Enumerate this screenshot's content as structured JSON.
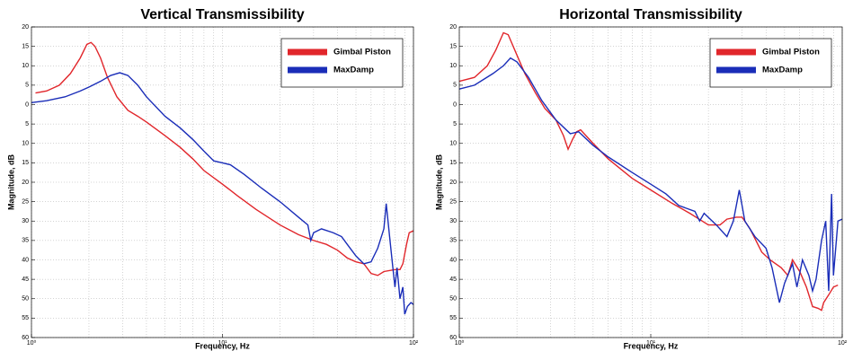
{
  "chart_data": [
    {
      "type": "line",
      "title": "Vertical Transmissibility",
      "xlabel": "Frequency, Hz",
      "ylabel": "Magnitude, dB",
      "xscale": "log",
      "grid": true,
      "legend": "upper right",
      "xlim": [
        1,
        100
      ],
      "xticks": [
        {
          "value": 1,
          "label": "10⁰"
        },
        {
          "value": 10,
          "label": "10¹"
        },
        {
          "value": 100,
          "label": "10²"
        }
      ],
      "ylim": [
        -60,
        20
      ],
      "yticks": [
        20,
        15,
        10,
        5,
        0,
        {
          "value": -5,
          "label": "5"
        },
        {
          "value": -10,
          "label": "10"
        },
        {
          "value": -15,
          "label": "15"
        },
        {
          "value": -20,
          "label": "20"
        },
        {
          "value": -25,
          "label": "25"
        },
        {
          "value": -30,
          "label": "30"
        },
        {
          "value": -35,
          "label": "35"
        },
        {
          "value": -40,
          "label": "40"
        },
        {
          "value": -45,
          "label": "45"
        },
        {
          "value": -50,
          "label": "50"
        },
        {
          "value": -55,
          "label": "55"
        },
        {
          "value": -60,
          "label": "60"
        }
      ],
      "series": [
        {
          "name": "Gimbal Piston",
          "color": "#e1262b",
          "x": [
            1.05,
            1.2,
            1.4,
            1.6,
            1.8,
            1.95,
            2.05,
            2.15,
            2.3,
            2.5,
            2.8,
            3.2,
            3.6,
            4,
            5,
            6,
            7,
            8,
            10,
            12,
            15,
            20,
            25,
            30,
            35,
            40,
            45,
            50,
            55,
            60,
            65,
            70,
            80,
            85,
            88,
            92,
            95,
            100
          ],
          "values": [
            3,
            3.5,
            5,
            8,
            12,
            15.5,
            16,
            15,
            12,
            7,
            2,
            -1.5,
            -3,
            -4.5,
            -8,
            -11,
            -14,
            -17,
            -20.5,
            -23.5,
            -27,
            -31,
            -33.5,
            -35,
            -36,
            -37.5,
            -39.5,
            -40.5,
            -41,
            -43.5,
            -44,
            -43,
            -42.5,
            -42.5,
            -41,
            -36,
            -33,
            -32.5
          ]
        },
        {
          "name": "MaxDamp",
          "color": "#1a2db8",
          "x": [
            1,
            1.2,
            1.5,
            1.8,
            2,
            2.3,
            2.6,
            2.9,
            3.2,
            3.6,
            4,
            5,
            6,
            7,
            8,
            9,
            10,
            11,
            13,
            16,
            20,
            25,
            28,
            29,
            30,
            33,
            38,
            42,
            45,
            50,
            55,
            60,
            65,
            70,
            72,
            75,
            78,
            80,
            82,
            85,
            88,
            90,
            93,
            97,
            100
          ],
          "values": [
            0.5,
            1,
            2,
            3.5,
            4.5,
            6,
            7.5,
            8.2,
            7.5,
            5,
            2,
            -3,
            -6,
            -9,
            -12,
            -14.5,
            -15,
            -15.5,
            -18,
            -21.5,
            -25,
            -29,
            -31,
            -35,
            -33,
            -32,
            -33,
            -34,
            -36,
            -39,
            -41,
            -40.5,
            -37,
            -32,
            -25.5,
            -34,
            -42,
            -47,
            -42,
            -50,
            -47,
            -54,
            -52,
            -51,
            -51.5
          ]
        }
      ]
    },
    {
      "type": "line",
      "title": "Horizontal Transmissibility",
      "xlabel": "Frequency, Hz",
      "ylabel": "Magnitude, dB",
      "xscale": "log",
      "grid": true,
      "legend": "upper right",
      "xlim": [
        1,
        100
      ],
      "xticks": [
        {
          "value": 1,
          "label": "10⁰"
        },
        {
          "value": 10,
          "label": "10¹"
        },
        {
          "value": 100,
          "label": "10²"
        }
      ],
      "ylim": [
        -60,
        20
      ],
      "yticks": [
        20,
        15,
        10,
        5,
        0,
        {
          "value": -5,
          "label": "5"
        },
        {
          "value": -10,
          "label": "10"
        },
        {
          "value": -15,
          "label": "15"
        },
        {
          "value": -20,
          "label": "20"
        },
        {
          "value": -25,
          "label": "25"
        },
        {
          "value": -30,
          "label": "30"
        },
        {
          "value": -35,
          "label": "35"
        },
        {
          "value": -40,
          "label": "40"
        },
        {
          "value": -45,
          "label": "45"
        },
        {
          "value": -50,
          "label": "50"
        },
        {
          "value": -55,
          "label": "55"
        },
        {
          "value": -60,
          "label": "60"
        }
      ],
      "series": [
        {
          "name": "Gimbal Piston",
          "color": "#e1262b",
          "x": [
            1,
            1.2,
            1.4,
            1.55,
            1.7,
            1.8,
            1.95,
            2.2,
            2.5,
            2.8,
            3.2,
            3.5,
            3.7,
            3.9,
            4.1,
            4.3,
            5,
            6,
            8,
            10,
            13,
            16,
            20,
            23,
            25,
            28,
            30,
            33,
            38,
            42,
            48,
            52,
            55,
            60,
            65,
            70,
            75,
            78,
            80,
            85,
            90,
            95
          ],
          "values": [
            6,
            7,
            10,
            14,
            18.5,
            18,
            14,
            8,
            3,
            -1,
            -4,
            -8,
            -11.5,
            -9,
            -7,
            -6.5,
            -10,
            -14,
            -19,
            -22,
            -25.5,
            -28,
            -31,
            -31,
            -29.5,
            -29,
            -29,
            -32,
            -38,
            -40,
            -42,
            -44,
            -40,
            -43,
            -47,
            -52,
            -52.5,
            -53,
            -51,
            -49,
            -47,
            -46.5
          ]
        },
        {
          "name": "MaxDamp",
          "color": "#1a2db8",
          "x": [
            1,
            1.2,
            1.5,
            1.7,
            1.85,
            2,
            2.3,
            2.7,
            3.2,
            3.8,
            4.2,
            5,
            6,
            8,
            10,
            12,
            14,
            17,
            18,
            19,
            22,
            25,
            27,
            29,
            31,
            35,
            40,
            43,
            47,
            50,
            55,
            58,
            62,
            67,
            70,
            73,
            78,
            82,
            85,
            88,
            90,
            95,
            100
          ],
          "values": [
            4,
            5,
            8,
            10,
            12,
            11,
            7,
            1,
            -4,
            -7.5,
            -7,
            -10.5,
            -13.5,
            -17.5,
            -20.5,
            -23,
            -26,
            -27.5,
            -30,
            -28,
            -31,
            -34,
            -30,
            -22,
            -30,
            -34,
            -37,
            -42,
            -51,
            -46,
            -41,
            -47,
            -40,
            -44,
            -48,
            -45,
            -35,
            -30,
            -48,
            -23,
            -44,
            -30,
            -29.5
          ]
        }
      ]
    }
  ]
}
